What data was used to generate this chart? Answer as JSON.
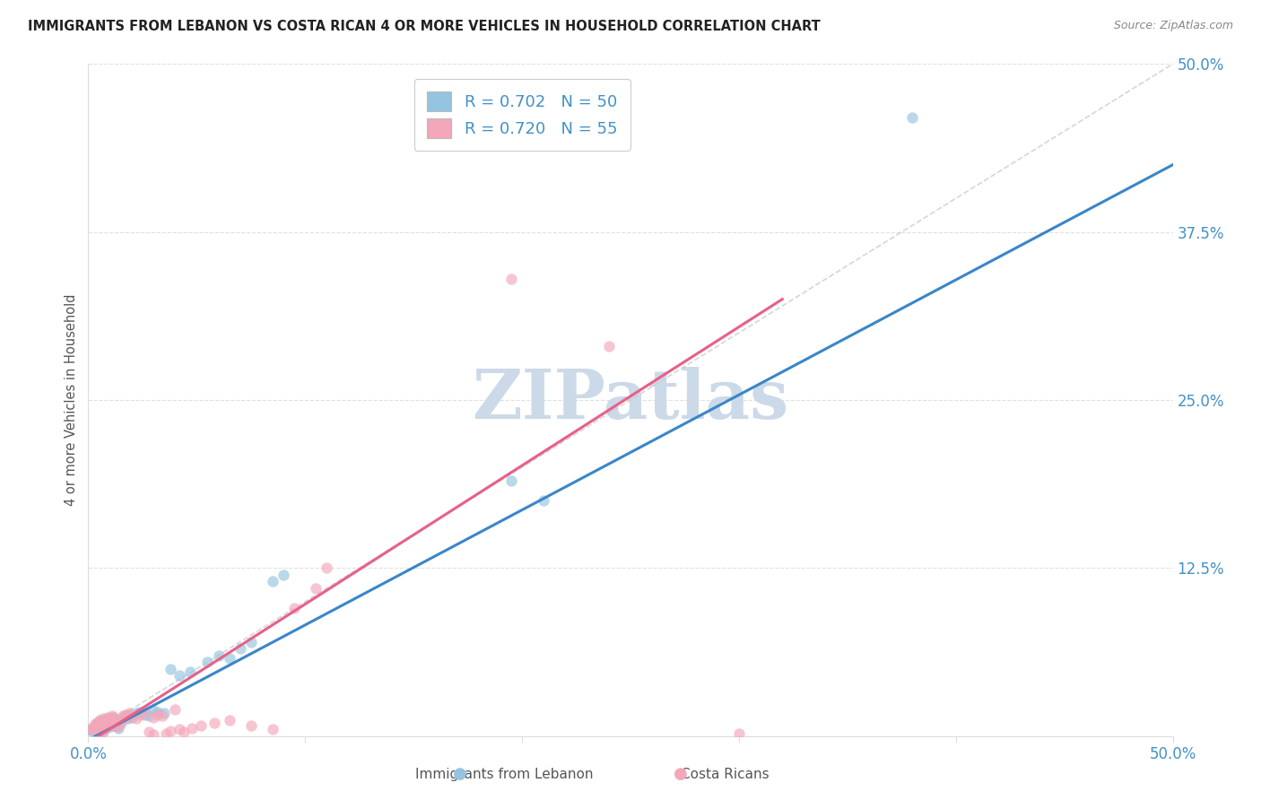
{
  "title": "IMMIGRANTS FROM LEBANON VS COSTA RICAN 4 OR MORE VEHICLES IN HOUSEHOLD CORRELATION CHART",
  "source": "Source: ZipAtlas.com",
  "ylabel": "4 or more Vehicles in Household",
  "xlim": [
    0.0,
    0.5
  ],
  "ylim": [
    0.0,
    0.5
  ],
  "legend_label1": "Immigrants from Lebanon",
  "legend_label2": "Costa Ricans",
  "R1": 0.702,
  "N1": 50,
  "R2": 0.72,
  "N2": 55,
  "color1": "#94c4df",
  "color2": "#f4a7b9",
  "line_color1": "#3a86c8",
  "line_color2": "#e8608a",
  "scatter_alpha": 0.65,
  "scatter_size": 80,
  "watermark": "ZIPatlas",
  "watermark_color": "#ccd9e8",
  "diagonal_color": "#cccccc",
  "blue_line_x0": 0.0,
  "blue_line_y0": -0.003,
  "blue_line_x1": 0.5,
  "blue_line_y1": 0.425,
  "pink_line_x0": 0.0,
  "pink_line_y0": -0.005,
  "pink_line_x1": 0.32,
  "pink_line_y1": 0.325,
  "blue_x": [
    0.001,
    0.002,
    0.003,
    0.004,
    0.005,
    0.006,
    0.007,
    0.008,
    0.009,
    0.01,
    0.011,
    0.012,
    0.013,
    0.014,
    0.015,
    0.003,
    0.004,
    0.005,
    0.006,
    0.007,
    0.008,
    0.009,
    0.01,
    0.011,
    0.012,
    0.016,
    0.017,
    0.018,
    0.019,
    0.02,
    0.022,
    0.024,
    0.026,
    0.028,
    0.03,
    0.032,
    0.035,
    0.038,
    0.042,
    0.047,
    0.055,
    0.06,
    0.065,
    0.07,
    0.075,
    0.085,
    0.09,
    0.195,
    0.21,
    0.38
  ],
  "blue_y": [
    0.005,
    0.004,
    0.006,
    0.003,
    0.007,
    0.005,
    0.004,
    0.006,
    0.008,
    0.007,
    0.009,
    0.008,
    0.007,
    0.006,
    0.01,
    0.008,
    0.009,
    0.011,
    0.01,
    0.012,
    0.011,
    0.013,
    0.012,
    0.014,
    0.013,
    0.014,
    0.015,
    0.013,
    0.016,
    0.014,
    0.017,
    0.018,
    0.016,
    0.015,
    0.019,
    0.018,
    0.017,
    0.05,
    0.045,
    0.048,
    0.055,
    0.06,
    0.058,
    0.065,
    0.07,
    0.115,
    0.12,
    0.19,
    0.175,
    0.46
  ],
  "pink_x": [
    0.001,
    0.002,
    0.003,
    0.004,
    0.005,
    0.006,
    0.007,
    0.008,
    0.009,
    0.01,
    0.011,
    0.012,
    0.013,
    0.014,
    0.015,
    0.003,
    0.004,
    0.005,
    0.006,
    0.007,
    0.008,
    0.009,
    0.01,
    0.011,
    0.012,
    0.016,
    0.017,
    0.018,
    0.019,
    0.02,
    0.022,
    0.024,
    0.026,
    0.028,
    0.03,
    0.03,
    0.032,
    0.034,
    0.036,
    0.038,
    0.04,
    0.042,
    0.044,
    0.048,
    0.052,
    0.058,
    0.065,
    0.075,
    0.085,
    0.095,
    0.105,
    0.11,
    0.195,
    0.24,
    0.3
  ],
  "pink_y": [
    0.006,
    0.005,
    0.007,
    0.004,
    0.008,
    0.006,
    0.003,
    0.007,
    0.009,
    0.008,
    0.01,
    0.009,
    0.008,
    0.007,
    0.011,
    0.009,
    0.01,
    0.012,
    0.011,
    0.013,
    0.012,
    0.014,
    0.013,
    0.015,
    0.014,
    0.015,
    0.016,
    0.014,
    0.017,
    0.015,
    0.013,
    0.016,
    0.018,
    0.003,
    0.001,
    0.014,
    0.016,
    0.015,
    0.002,
    0.004,
    0.02,
    0.005,
    0.003,
    0.006,
    0.008,
    0.01,
    0.012,
    0.008,
    0.005,
    0.095,
    0.11,
    0.125,
    0.34,
    0.29,
    0.002
  ]
}
